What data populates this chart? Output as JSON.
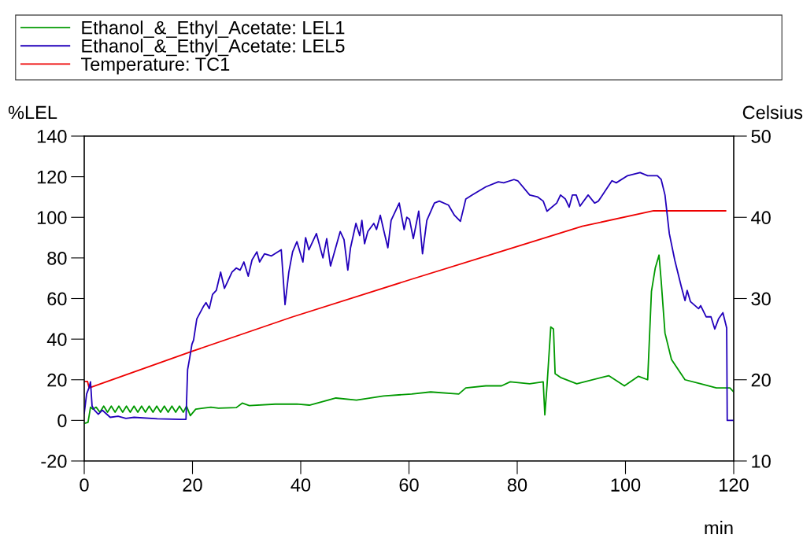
{
  "chart_data": {
    "type": "line",
    "xlabel": "min",
    "ylabel": "%LEL",
    "y2label": "Celsius",
    "xlim": [
      0,
      120
    ],
    "xticks": [
      0,
      20,
      40,
      60,
      80,
      100,
      120
    ],
    "ylim": [
      -20,
      140
    ],
    "yticks": [
      -20,
      0,
      20,
      40,
      60,
      80,
      100,
      120,
      140
    ],
    "y2lim": [
      10,
      50
    ],
    "y2ticks": [
      10,
      20,
      30,
      40,
      50
    ],
    "grid": false,
    "legend": "top",
    "marker": "none",
    "line_style": "solid",
    "series": [
      {
        "name": "Ethanol_&_Ethyl_Acetate: LEL1",
        "color": "#009900",
        "x": [
          0,
          0.7,
          1.16,
          1.6,
          2.2,
          2.9,
          3.6,
          4.3,
          5,
          5.7,
          6.4,
          7.1,
          7.8,
          8.5,
          9.2,
          9.9,
          10.6,
          11.3,
          12,
          12.7,
          13.4,
          14.1,
          14.8,
          15.5,
          16.2,
          16.9,
          17.6,
          18.3,
          18.9,
          19.6,
          20.6,
          23.4,
          24.8,
          28.1,
          29.2,
          30.5,
          35.3,
          39.3,
          41.6,
          46.5,
          50.3,
          55.3,
          60.5,
          64,
          69.2,
          70.5,
          74.2,
          77.1,
          78.7,
          82.3,
          84.8,
          85.1,
          85.5,
          86.2,
          86.7,
          87,
          88.1,
          91,
          96.9,
          99.8,
          102.4,
          104.1,
          104.8,
          105.5,
          106.2,
          106.6,
          107.3,
          108.5,
          111,
          113.9,
          116.8,
          119.3,
          120
        ],
        "values": [
          -1.5,
          -1,
          6.5,
          5.5,
          6.5,
          4,
          7,
          4,
          7,
          4,
          7,
          4,
          7,
          4,
          7,
          4,
          7,
          4,
          7,
          4,
          7,
          4,
          7,
          4,
          7,
          4,
          7,
          4,
          7,
          2.3,
          5.5,
          6.5,
          6,
          6.3,
          8.5,
          7.3,
          8,
          8,
          7.5,
          11,
          10,
          12,
          13,
          14,
          13,
          16,
          17,
          17,
          19,
          18,
          19,
          2.7,
          17,
          46,
          45,
          23,
          21,
          18,
          22,
          17,
          21.7,
          20,
          63.5,
          75,
          81.4,
          68.6,
          43,
          30,
          20,
          18,
          16,
          16,
          14
        ]
      },
      {
        "name": "Ethanol_&_Ethyl_Acetate: LEL5",
        "color": "#2200bb",
        "x": [
          0,
          0.44,
          0.87,
          1.16,
          1.45,
          1.89,
          2.6,
          3.35,
          4.8,
          6.25,
          7.7,
          9.2,
          13.5,
          17.9,
          18.8,
          19.1,
          19.5,
          19.9,
          20.2,
          20.8,
          21.4,
          22,
          22.5,
          23.1,
          23.7,
          24.4,
          25.2,
          25.9,
          26.6,
          27.3,
          28.1,
          28.8,
          29.5,
          30.3,
          31,
          31.9,
          32.4,
          33.3,
          34.6,
          36.4,
          37.1,
          37.8,
          38.5,
          39.3,
          40.4,
          40.9,
          41.5,
          42.9,
          44.1,
          44.8,
          45.5,
          47.3,
          48,
          48.7,
          49.2,
          50.2,
          50.9,
          51.3,
          51.8,
          52.4,
          53.5,
          54,
          54.7,
          55.3,
          56.1,
          56.7,
          58.2,
          59.1,
          59.6,
          60.1,
          60.8,
          61.8,
          62.5,
          63.3,
          64.7,
          65.6,
          67.3,
          68.4,
          69.5,
          70.5,
          71.7,
          74.2,
          76.5,
          77.5,
          79.4,
          80.1,
          82.3,
          83.8,
          84.8,
          85.5,
          87.3,
          88,
          88.9,
          89.6,
          90.2,
          90.9,
          91.6,
          93.1,
          94.3,
          95,
          97.5,
          98.3,
          100.4,
          102.7,
          104.1,
          105.9,
          106.6,
          107.3,
          108.1,
          109.1,
          110.3,
          111,
          111.4,
          112,
          113.5,
          113.9,
          114.9,
          115.8,
          116.5,
          117.2,
          118,
          118.7,
          118.8,
          120
        ],
        "values": [
          3.5,
          13,
          16,
          19,
          7,
          5,
          3,
          5,
          1.5,
          2,
          1,
          1.5,
          0.8,
          0.5,
          0.5,
          25,
          31,
          37.5,
          39.5,
          50,
          53,
          56,
          58,
          55,
          62,
          64,
          73,
          65,
          69,
          73,
          75,
          74,
          78,
          71,
          79,
          83,
          78,
          82,
          81,
          84,
          57,
          73,
          83,
          88,
          78,
          90,
          84,
          92,
          80,
          89.5,
          76,
          93,
          89,
          74,
          85,
          97,
          91,
          98.5,
          87,
          93,
          97,
          94,
          101,
          94,
          85,
          98.5,
          107,
          94,
          100,
          99,
          89.5,
          103,
          82,
          98.5,
          107,
          108,
          106,
          101,
          98,
          109,
          111,
          115,
          117.5,
          117,
          118.6,
          118,
          111,
          110,
          108,
          103,
          107,
          111,
          109,
          105,
          111,
          111,
          105.5,
          111,
          107,
          108,
          118,
          117,
          120.5,
          122,
          120.5,
          120.5,
          118.6,
          111,
          92,
          79,
          66,
          59,
          64,
          58.5,
          55,
          56.5,
          51,
          51,
          45,
          50,
          53,
          45.5,
          0,
          0
        ]
      },
      {
        "name": "Temperature: TC1",
        "color": "#ee0000",
        "axis": "y2",
        "x": [
          0,
          0.6,
          0.9,
          19.9,
          38.3,
          60.1,
          77.5,
          92,
          105.2,
          118.5
        ],
        "values": [
          19.8,
          19.8,
          19,
          23.5,
          27.7,
          32.3,
          35.9,
          38.9,
          40.8,
          40.8
        ]
      }
    ]
  }
}
